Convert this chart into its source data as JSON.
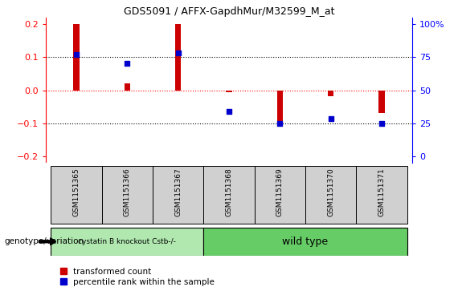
{
  "title": "GDS5091 / AFFX-GapdhMur/M32599_M_at",
  "samples": [
    "GSM1151365",
    "GSM1151366",
    "GSM1151367",
    "GSM1151368",
    "GSM1151369",
    "GSM1151370",
    "GSM1151371"
  ],
  "bar_values": [
    0.2,
    0.02,
    0.2,
    -0.005,
    -0.105,
    -0.018,
    -0.07
  ],
  "dot_values": [
    0.107,
    0.082,
    0.112,
    -0.063,
    -0.1,
    -0.087,
    -0.1
  ],
  "ylim_left": [
    -0.22,
    0.22
  ],
  "yticks_left": [
    -0.2,
    -0.1,
    0.0,
    0.1,
    0.2
  ],
  "ytick_labels_right": [
    "0",
    "25",
    "50",
    "75",
    "100%"
  ],
  "bar_color": "#cc0000",
  "dot_color": "#0000cc",
  "bar_width": 0.12,
  "group1_label": "cystatin B knockout Cstb-/-",
  "group2_label": "wild type",
  "group1_indices": [
    0,
    1,
    2
  ],
  "group2_indices": [
    3,
    4,
    5,
    6
  ],
  "group1_color": "#b0e8b0",
  "group2_color": "#66cc66",
  "sample_bg_color": "#d0d0d0",
  "annotation_label": "genotype/variation",
  "legend_bar_label": "transformed count",
  "legend_dot_label": "percentile rank within the sample"
}
